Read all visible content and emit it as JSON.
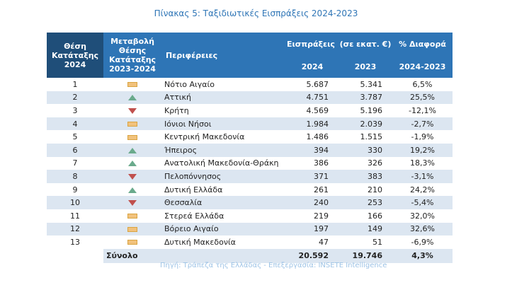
{
  "title": "Πίνακας 5: Ταξιδιωτικές Εισπράξεις 2024-2023",
  "headers": {
    "rank": "Θέση Κατάταξης 2024",
    "change": "Μεταβολή Θέσης Κατάταξης 2023-2024",
    "region": "Περιφέρειες",
    "receipts": "Εισπράξεις",
    "unit": "(σε εκατ. €)",
    "pct": "% Διαφορά",
    "y2024": "2024",
    "y2023": "2023",
    "range": "2024-2023"
  },
  "colors": {
    "header": "#2e75b6",
    "header_dark": "#1f4e79",
    "stripe": "#dce6f1",
    "up": "#6aaa8c",
    "down": "#c0504d",
    "same": "#f1c27d"
  },
  "rows": [
    {
      "rank": "1",
      "change": "same",
      "region": "Νότιο Αιγαίο",
      "v2024": "5.687",
      "v2023": "5.341",
      "pct": "6,5%"
    },
    {
      "rank": "2",
      "change": "up",
      "region": "Αττική",
      "v2024": "4.751",
      "v2023": "3.787",
      "pct": "25,5%"
    },
    {
      "rank": "3",
      "change": "down",
      "region": "Κρήτη",
      "v2024": "4.569",
      "v2023": "5.196",
      "pct": "-12,1%"
    },
    {
      "rank": "4",
      "change": "same",
      "region": "Ιόνιοι Νήσοι",
      "v2024": "1.984",
      "v2023": "2.039",
      "pct": "-2,7%"
    },
    {
      "rank": "5",
      "change": "same",
      "region": "Κεντρική Μακεδονία",
      "v2024": "1.486",
      "v2023": "1.515",
      "pct": "-1,9%"
    },
    {
      "rank": "6",
      "change": "up",
      "region": "Ήπειρος",
      "v2024": "394",
      "v2023": "330",
      "pct": "19,2%"
    },
    {
      "rank": "7",
      "change": "up",
      "region": "Ανατολική Μακεδονία-Θράκη",
      "v2024": "386",
      "v2023": "326",
      "pct": "18,3%"
    },
    {
      "rank": "8",
      "change": "down",
      "region": "Πελοπόννησος",
      "v2024": "371",
      "v2023": "383",
      "pct": "-3,1%"
    },
    {
      "rank": "9",
      "change": "up",
      "region": "Δυτική Ελλάδα",
      "v2024": "261",
      "v2023": "210",
      "pct": "24,2%"
    },
    {
      "rank": "10",
      "change": "down",
      "region": "Θεσσαλία",
      "v2024": "240",
      "v2023": "253",
      "pct": "-5,4%"
    },
    {
      "rank": "11",
      "change": "same",
      "region": "Στερεά Ελλάδα",
      "v2024": "219",
      "v2023": "166",
      "pct": "32,0%"
    },
    {
      "rank": "12",
      "change": "same",
      "region": "Βόρειο Αιγαίο",
      "v2024": "197",
      "v2023": "149",
      "pct": "32,6%"
    },
    {
      "rank": "13",
      "change": "same",
      "region": "Δυτική Μακεδονία",
      "v2024": "47",
      "v2023": "51",
      "pct": "-6,9%"
    }
  ],
  "total": {
    "label": "Σύνολο",
    "v2024": "20.592",
    "v2023": "19.746",
    "pct": "4,3%"
  },
  "source": "Πηγή: Τράπεζα της Ελλάδας - Επεξεργασία: INSETE Intelligence"
}
